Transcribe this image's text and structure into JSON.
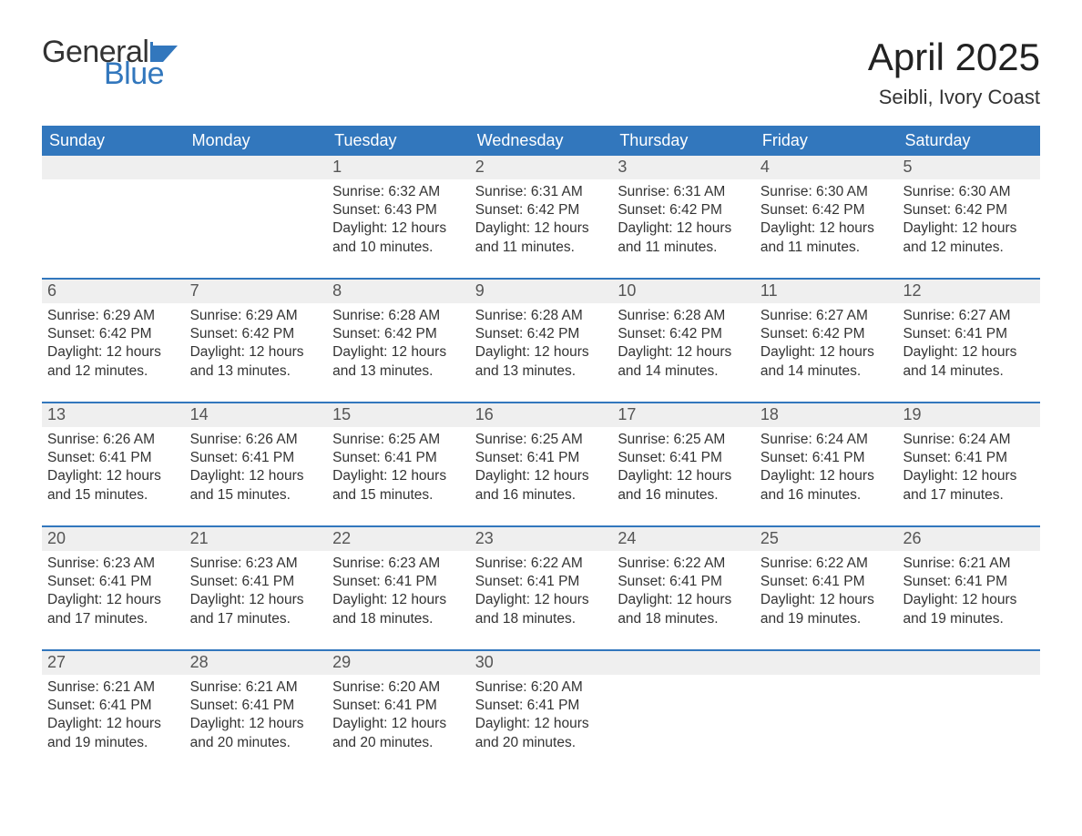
{
  "logo": {
    "text_general": "General",
    "text_blue": "Blue",
    "general_color": "#333333",
    "blue_color": "#3277bd",
    "flag_color": "#3277bd"
  },
  "title": "April 2025",
  "location": "Seibli, Ivory Coast",
  "colors": {
    "header_bg": "#3277bd",
    "header_text": "#ffffff",
    "daynum_bg": "#efefef",
    "daynum_text": "#555555",
    "body_text": "#333333",
    "week_border": "#3277bd",
    "page_bg": "#ffffff"
  },
  "typography": {
    "title_fontsize": 42,
    "location_fontsize": 22,
    "dow_fontsize": 18,
    "daynum_fontsize": 18,
    "detail_fontsize": 15.5,
    "logo_fontsize": 34
  },
  "days_of_week": [
    "Sunday",
    "Monday",
    "Tuesday",
    "Wednesday",
    "Thursday",
    "Friday",
    "Saturday"
  ],
  "weeks": [
    {
      "cells": [
        {
          "num": "",
          "sunrise": "",
          "sunset": "",
          "daylight": ""
        },
        {
          "num": "",
          "sunrise": "",
          "sunset": "",
          "daylight": ""
        },
        {
          "num": "1",
          "sunrise": "Sunrise: 6:32 AM",
          "sunset": "Sunset: 6:43 PM",
          "daylight": "Daylight: 12 hours and 10 minutes."
        },
        {
          "num": "2",
          "sunrise": "Sunrise: 6:31 AM",
          "sunset": "Sunset: 6:42 PM",
          "daylight": "Daylight: 12 hours and 11 minutes."
        },
        {
          "num": "3",
          "sunrise": "Sunrise: 6:31 AM",
          "sunset": "Sunset: 6:42 PM",
          "daylight": "Daylight: 12 hours and 11 minutes."
        },
        {
          "num": "4",
          "sunrise": "Sunrise: 6:30 AM",
          "sunset": "Sunset: 6:42 PM",
          "daylight": "Daylight: 12 hours and 11 minutes."
        },
        {
          "num": "5",
          "sunrise": "Sunrise: 6:30 AM",
          "sunset": "Sunset: 6:42 PM",
          "daylight": "Daylight: 12 hours and 12 minutes."
        }
      ]
    },
    {
      "cells": [
        {
          "num": "6",
          "sunrise": "Sunrise: 6:29 AM",
          "sunset": "Sunset: 6:42 PM",
          "daylight": "Daylight: 12 hours and 12 minutes."
        },
        {
          "num": "7",
          "sunrise": "Sunrise: 6:29 AM",
          "sunset": "Sunset: 6:42 PM",
          "daylight": "Daylight: 12 hours and 13 minutes."
        },
        {
          "num": "8",
          "sunrise": "Sunrise: 6:28 AM",
          "sunset": "Sunset: 6:42 PM",
          "daylight": "Daylight: 12 hours and 13 minutes."
        },
        {
          "num": "9",
          "sunrise": "Sunrise: 6:28 AM",
          "sunset": "Sunset: 6:42 PM",
          "daylight": "Daylight: 12 hours and 13 minutes."
        },
        {
          "num": "10",
          "sunrise": "Sunrise: 6:28 AM",
          "sunset": "Sunset: 6:42 PM",
          "daylight": "Daylight: 12 hours and 14 minutes."
        },
        {
          "num": "11",
          "sunrise": "Sunrise: 6:27 AM",
          "sunset": "Sunset: 6:42 PM",
          "daylight": "Daylight: 12 hours and 14 minutes."
        },
        {
          "num": "12",
          "sunrise": "Sunrise: 6:27 AM",
          "sunset": "Sunset: 6:41 PM",
          "daylight": "Daylight: 12 hours and 14 minutes."
        }
      ]
    },
    {
      "cells": [
        {
          "num": "13",
          "sunrise": "Sunrise: 6:26 AM",
          "sunset": "Sunset: 6:41 PM",
          "daylight": "Daylight: 12 hours and 15 minutes."
        },
        {
          "num": "14",
          "sunrise": "Sunrise: 6:26 AM",
          "sunset": "Sunset: 6:41 PM",
          "daylight": "Daylight: 12 hours and 15 minutes."
        },
        {
          "num": "15",
          "sunrise": "Sunrise: 6:25 AM",
          "sunset": "Sunset: 6:41 PM",
          "daylight": "Daylight: 12 hours and 15 minutes."
        },
        {
          "num": "16",
          "sunrise": "Sunrise: 6:25 AM",
          "sunset": "Sunset: 6:41 PM",
          "daylight": "Daylight: 12 hours and 16 minutes."
        },
        {
          "num": "17",
          "sunrise": "Sunrise: 6:25 AM",
          "sunset": "Sunset: 6:41 PM",
          "daylight": "Daylight: 12 hours and 16 minutes."
        },
        {
          "num": "18",
          "sunrise": "Sunrise: 6:24 AM",
          "sunset": "Sunset: 6:41 PM",
          "daylight": "Daylight: 12 hours and 16 minutes."
        },
        {
          "num": "19",
          "sunrise": "Sunrise: 6:24 AM",
          "sunset": "Sunset: 6:41 PM",
          "daylight": "Daylight: 12 hours and 17 minutes."
        }
      ]
    },
    {
      "cells": [
        {
          "num": "20",
          "sunrise": "Sunrise: 6:23 AM",
          "sunset": "Sunset: 6:41 PM",
          "daylight": "Daylight: 12 hours and 17 minutes."
        },
        {
          "num": "21",
          "sunrise": "Sunrise: 6:23 AM",
          "sunset": "Sunset: 6:41 PM",
          "daylight": "Daylight: 12 hours and 17 minutes."
        },
        {
          "num": "22",
          "sunrise": "Sunrise: 6:23 AM",
          "sunset": "Sunset: 6:41 PM",
          "daylight": "Daylight: 12 hours and 18 minutes."
        },
        {
          "num": "23",
          "sunrise": "Sunrise: 6:22 AM",
          "sunset": "Sunset: 6:41 PM",
          "daylight": "Daylight: 12 hours and 18 minutes."
        },
        {
          "num": "24",
          "sunrise": "Sunrise: 6:22 AM",
          "sunset": "Sunset: 6:41 PM",
          "daylight": "Daylight: 12 hours and 18 minutes."
        },
        {
          "num": "25",
          "sunrise": "Sunrise: 6:22 AM",
          "sunset": "Sunset: 6:41 PM",
          "daylight": "Daylight: 12 hours and 19 minutes."
        },
        {
          "num": "26",
          "sunrise": "Sunrise: 6:21 AM",
          "sunset": "Sunset: 6:41 PM",
          "daylight": "Daylight: 12 hours and 19 minutes."
        }
      ]
    },
    {
      "cells": [
        {
          "num": "27",
          "sunrise": "Sunrise: 6:21 AM",
          "sunset": "Sunset: 6:41 PM",
          "daylight": "Daylight: 12 hours and 19 minutes."
        },
        {
          "num": "28",
          "sunrise": "Sunrise: 6:21 AM",
          "sunset": "Sunset: 6:41 PM",
          "daylight": "Daylight: 12 hours and 20 minutes."
        },
        {
          "num": "29",
          "sunrise": "Sunrise: 6:20 AM",
          "sunset": "Sunset: 6:41 PM",
          "daylight": "Daylight: 12 hours and 20 minutes."
        },
        {
          "num": "30",
          "sunrise": "Sunrise: 6:20 AM",
          "sunset": "Sunset: 6:41 PM",
          "daylight": "Daylight: 12 hours and 20 minutes."
        },
        {
          "num": "",
          "sunrise": "",
          "sunset": "",
          "daylight": ""
        },
        {
          "num": "",
          "sunrise": "",
          "sunset": "",
          "daylight": ""
        },
        {
          "num": "",
          "sunrise": "",
          "sunset": "",
          "daylight": ""
        }
      ]
    }
  ]
}
